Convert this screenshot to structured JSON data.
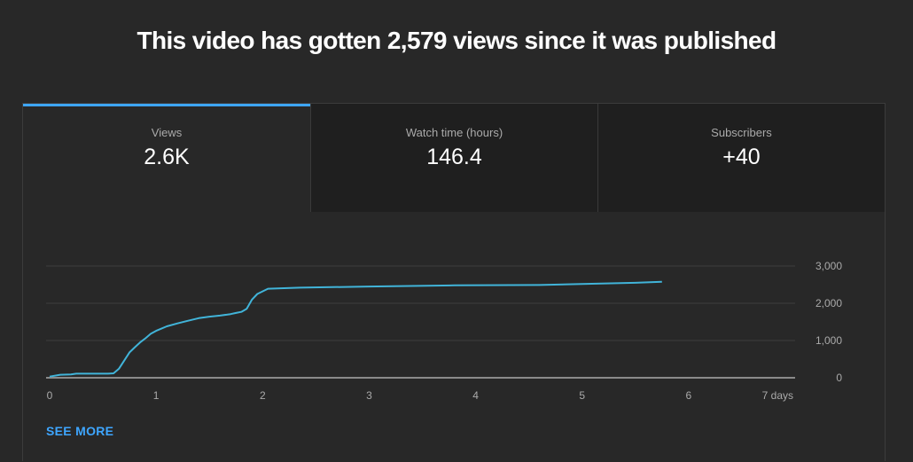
{
  "headline": "This video has gotten 2,579 views since it was published",
  "tabs": [
    {
      "label": "Views",
      "value": "2.6K"
    },
    {
      "label": "Watch time (hours)",
      "value": "146.4"
    },
    {
      "label": "Subscribers",
      "value": "+40"
    }
  ],
  "see_more": "SEE MORE",
  "colors": {
    "accent": "#3ea6ff",
    "line": "#41b4d9",
    "background": "#282828"
  },
  "chart_data": {
    "type": "line",
    "title": "",
    "xlabel": "",
    "ylabel": "",
    "x_tick_labels": [
      "0",
      "1",
      "2",
      "3",
      "4",
      "5",
      "6",
      "7 days"
    ],
    "y_tick_labels": [
      "0",
      "1,000",
      "2,000",
      "3,000"
    ],
    "xlim": [
      0,
      7
    ],
    "ylim": [
      0,
      3000
    ],
    "y_axis_position": "right",
    "grid": true,
    "series": [
      {
        "x": [
          0,
          0.1,
          0.2,
          0.25,
          0.35,
          0.45,
          0.55,
          0.6,
          0.65,
          0.7,
          0.75,
          0.8,
          0.85,
          0.9,
          0.95,
          1.0,
          1.05,
          1.1,
          1.2,
          1.3,
          1.4,
          1.5,
          1.6,
          1.7,
          1.75,
          1.8,
          1.85,
          1.9,
          1.95,
          2.05,
          2.35,
          3.0,
          3.8,
          4.6,
          5.0,
          5.5,
          5.75
        ],
        "y": [
          30,
          80,
          90,
          110,
          110,
          110,
          110,
          120,
          240,
          460,
          680,
          820,
          950,
          1060,
          1180,
          1260,
          1320,
          1380,
          1460,
          1530,
          1600,
          1640,
          1670,
          1710,
          1740,
          1770,
          1850,
          2100,
          2250,
          2390,
          2420,
          2450,
          2480,
          2490,
          2520,
          2550,
          2579
        ]
      }
    ]
  }
}
